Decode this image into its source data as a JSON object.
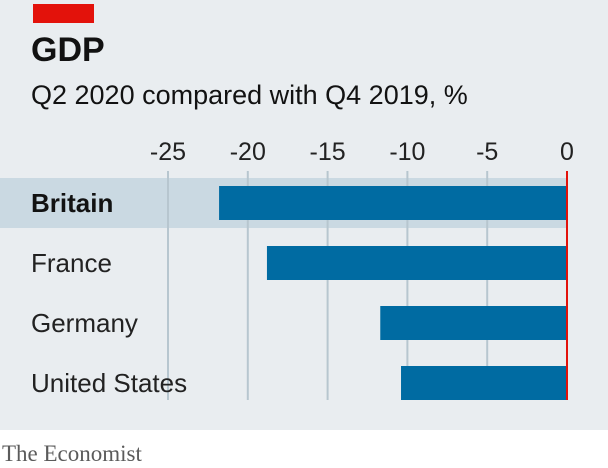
{
  "header": {
    "title": "GDP",
    "subtitle": "Q2 2020 compared with Q4 2019, %",
    "tag_color": "#e3120b"
  },
  "source": "The Economist",
  "colors": {
    "panel": "#e9edf0",
    "bar": "#006ba2",
    "highlight_row": "#cad9e2",
    "zero_line": "#e3120b",
    "gridline": "#b7c6cf"
  },
  "chart_data": {
    "type": "bar",
    "orientation": "horizontal",
    "categories": [
      "Britain",
      "France",
      "Germany",
      "United States"
    ],
    "values": [
      -21.8,
      -18.8,
      -11.7,
      -10.4
    ],
    "highlight": "Britain",
    "title": "GDP",
    "subtitle": "Q2 2020 compared with Q4 2019, %",
    "xlim": [
      -25,
      0
    ],
    "xticks": [
      -25,
      -20,
      -15,
      -10,
      -5,
      0
    ],
    "xtick_labels": [
      "-25",
      "-20",
      "-15",
      "-10",
      "-5",
      "0"
    ],
    "tick_position": "top",
    "grid": true
  }
}
